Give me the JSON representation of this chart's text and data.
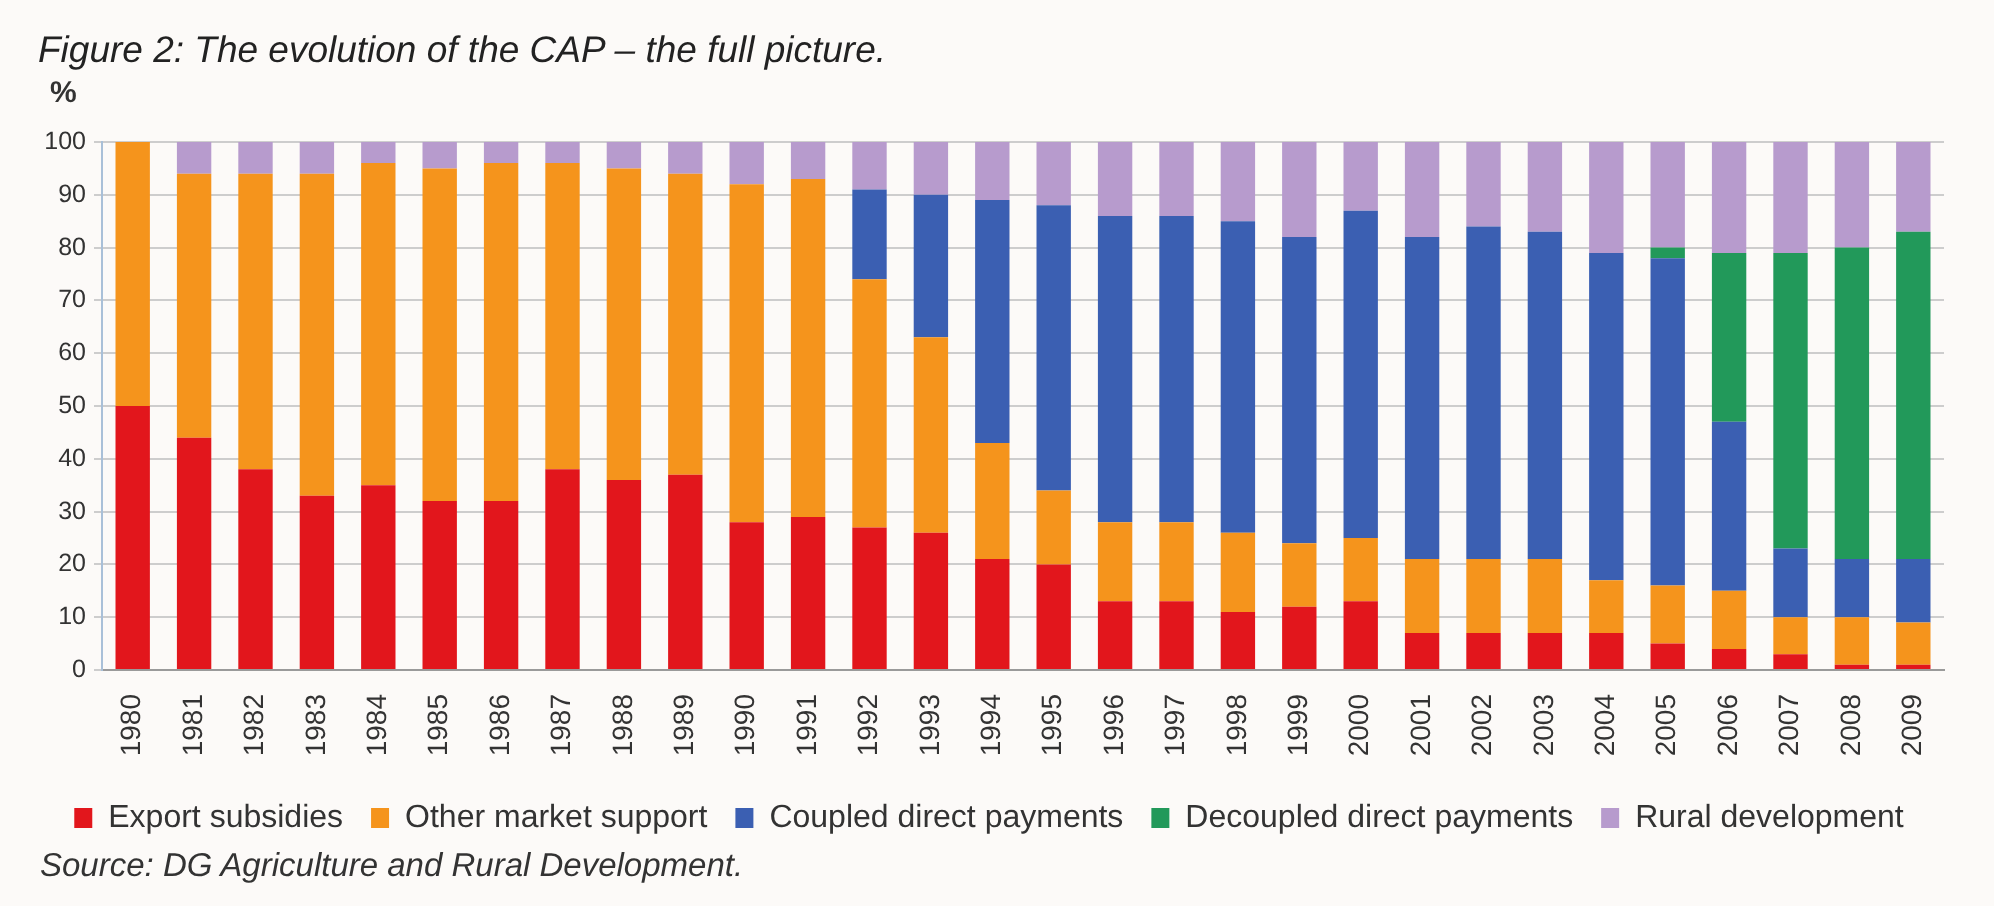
{
  "chart_data": {
    "type": "bar",
    "title": "Figure 2: The evolution of the CAP – the full picture.",
    "ylabel": "%",
    "categories": [
      "1980",
      "1981",
      "1982",
      "1983",
      "1984",
      "1985",
      "1986",
      "1987",
      "1988",
      "1989",
      "1990",
      "1991",
      "1992",
      "1993",
      "1994",
      "1995",
      "1996",
      "1997",
      "1998",
      "1999",
      "2000",
      "2001",
      "2002",
      "2003",
      "2004",
      "2005",
      "2006",
      "2007",
      "2008",
      "2009"
    ],
    "series": [
      {
        "name": "Export subsidies",
        "color": "#e2161c",
        "values": [
          50,
          44,
          38,
          33,
          35,
          32,
          32,
          38,
          36,
          37,
          28,
          29,
          27,
          26,
          21,
          20,
          13,
          13,
          11,
          12,
          13,
          7,
          7,
          7,
          7,
          5,
          4,
          3,
          1,
          1
        ]
      },
      {
        "name": "Other market support",
        "color": "#f5941c",
        "values": [
          50,
          50,
          56,
          61,
          61,
          63,
          64,
          58,
          59,
          57,
          64,
          64,
          47,
          37,
          22,
          14,
          15,
          15,
          15,
          12,
          12,
          14,
          14,
          14,
          10,
          11,
          11,
          7,
          9,
          8
        ]
      },
      {
        "name": "Coupled direct payments",
        "color": "#3b5fb2",
        "values": [
          null,
          null,
          null,
          null,
          null,
          null,
          null,
          null,
          null,
          null,
          null,
          null,
          17,
          27,
          46,
          54,
          58,
          58,
          59,
          58,
          62,
          61,
          63,
          62,
          62,
          62,
          32,
          13,
          11,
          12
        ]
      },
      {
        "name": "Decoupled direct payments",
        "color": "#22995a",
        "values": [
          null,
          null,
          null,
          null,
          null,
          null,
          null,
          null,
          null,
          null,
          null,
          null,
          null,
          null,
          null,
          null,
          null,
          null,
          null,
          null,
          null,
          null,
          null,
          null,
          null,
          2,
          32,
          56,
          59,
          62
        ]
      },
      {
        "name": "Rural development",
        "color": "#b79bcd",
        "values": [
          null,
          6,
          6,
          6,
          4,
          5,
          4,
          4,
          5,
          6,
          8,
          7,
          9,
          10,
          11,
          12,
          14,
          14,
          15,
          18,
          13,
          18,
          16,
          17,
          21,
          20,
          21,
          21,
          20,
          17
        ]
      }
    ],
    "stacked": true,
    "ylim": [
      0,
      100
    ],
    "yticks": [
      0,
      10,
      20,
      30,
      40,
      50,
      60,
      70,
      80,
      90,
      100
    ],
    "grid": "y",
    "legend": "bottom",
    "annotations": [
      "Source: DG Agriculture and Rural Development."
    ]
  }
}
